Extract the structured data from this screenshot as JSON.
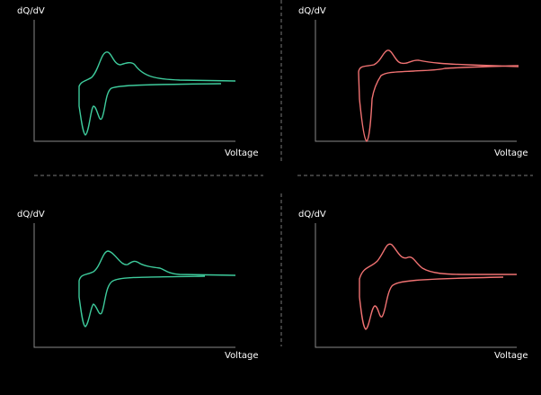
{
  "panels": [
    {
      "y_label": "dQ/dV",
      "x_label": "Voltage"
    },
    {
      "y_label": "dQ/dV",
      "x_label": "Voltage"
    },
    {
      "y_label": "dQ/dV",
      "x_label": "Voltage"
    },
    {
      "y_label": "dQ/dV",
      "x_label": "Voltage"
    }
  ]
}
